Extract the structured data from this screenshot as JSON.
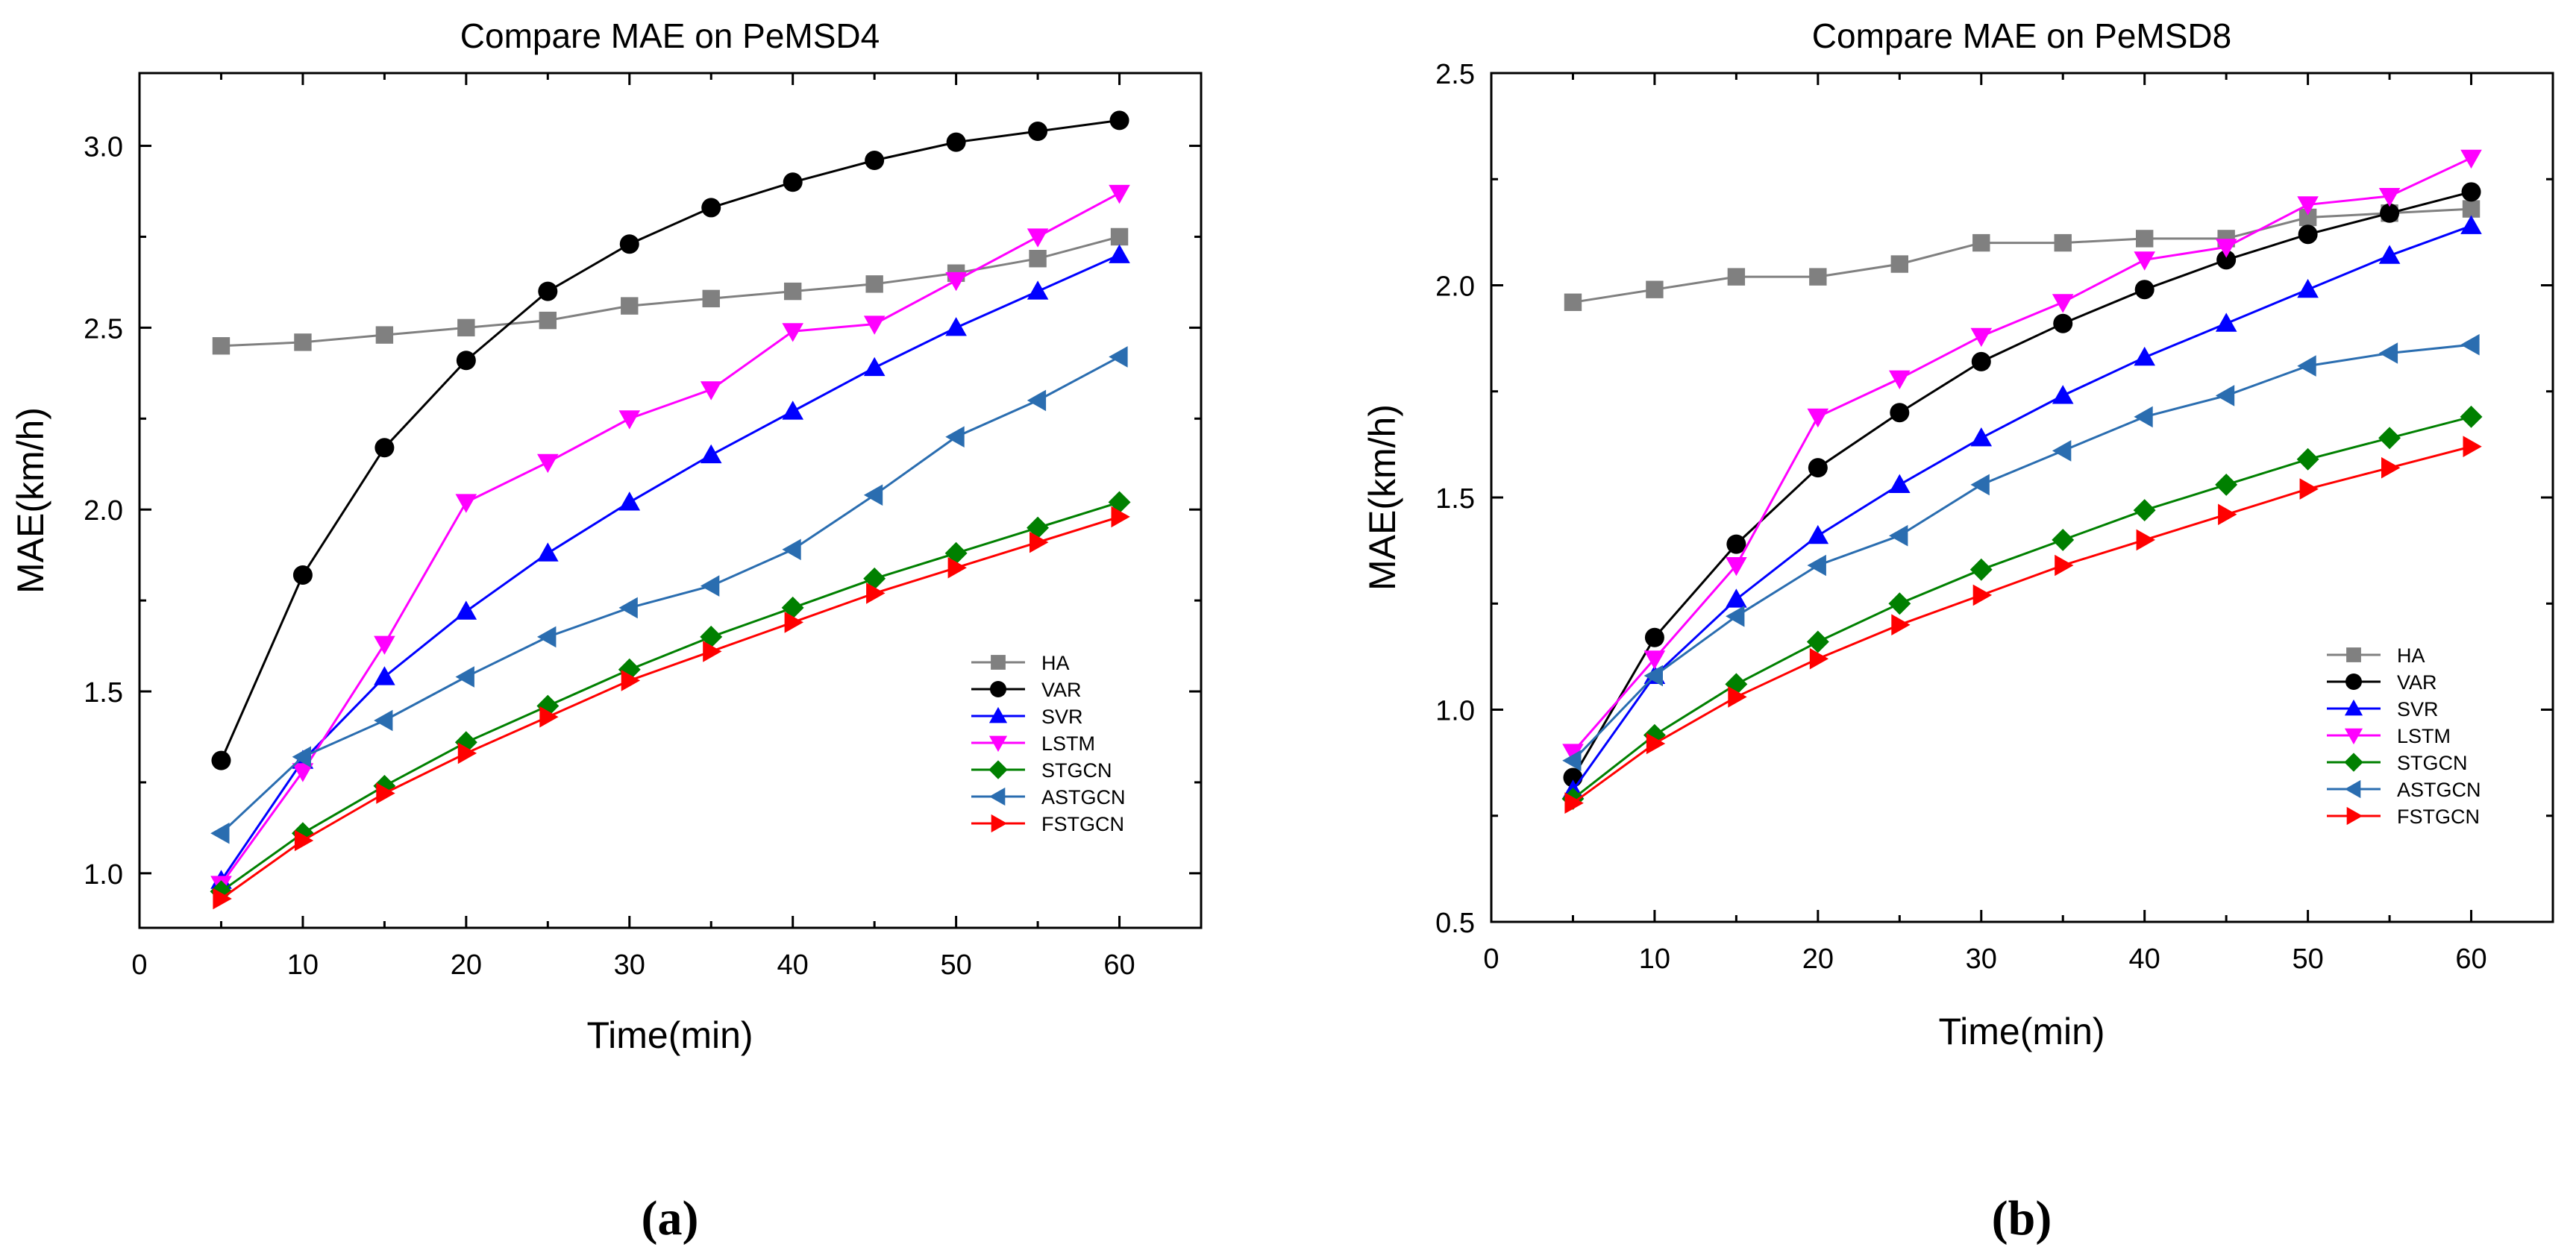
{
  "chart_data": [
    {
      "type": "line",
      "title": "Compare MAE on PeMSD4",
      "xlabel": "Time(min)",
      "ylabel": "MAE(km/h)",
      "xlim": [
        0,
        65
      ],
      "ylim": [
        0.85,
        3.2
      ],
      "xticks": [
        0,
        10,
        20,
        30,
        40,
        50,
        60
      ],
      "yticks": [
        1.0,
        1.5,
        2.0,
        2.5,
        3.0
      ],
      "ytick_labels": [
        "1.0",
        "1.5",
        "2.0",
        "2.5",
        "3.0"
      ],
      "grid": false,
      "legend_position": "bottom-right",
      "caption": "(a)",
      "x": [
        5,
        10,
        15,
        20,
        25,
        30,
        35,
        40,
        45,
        50,
        55,
        60
      ],
      "series": [
        {
          "name": "HA",
          "color": "#808080",
          "marker": "square",
          "values": [
            2.45,
            2.46,
            2.48,
            2.5,
            2.52,
            2.56,
            2.58,
            2.6,
            2.62,
            2.65,
            2.69,
            2.75
          ]
        },
        {
          "name": "VAR",
          "color": "#000000",
          "marker": "circle",
          "values": [
            1.31,
            1.82,
            2.17,
            2.41,
            2.6,
            2.73,
            2.83,
            2.9,
            2.96,
            3.01,
            3.04,
            3.07
          ]
        },
        {
          "name": "SVR",
          "color": "#0000FF",
          "marker": "triangle-up",
          "values": [
            0.98,
            1.31,
            1.54,
            1.72,
            1.88,
            2.02,
            2.15,
            2.27,
            2.39,
            2.5,
            2.6,
            2.7
          ]
        },
        {
          "name": "LSTM",
          "color": "#FF00FF",
          "marker": "triangle-down",
          "values": [
            0.97,
            1.28,
            1.63,
            2.02,
            2.13,
            2.25,
            2.33,
            2.49,
            2.51,
            2.63,
            2.75,
            2.87
          ]
        },
        {
          "name": "STGCN",
          "color": "#008000",
          "marker": "diamond",
          "values": [
            0.95,
            1.11,
            1.24,
            1.36,
            1.46,
            1.56,
            1.65,
            1.73,
            1.81,
            1.88,
            1.95,
            2.02
          ]
        },
        {
          "name": "ASTGCN",
          "color": "#2A6DB0",
          "marker": "triangle-left",
          "values": [
            1.11,
            1.32,
            1.42,
            1.54,
            1.65,
            1.73,
            1.79,
            1.89,
            2.04,
            2.2,
            2.3,
            2.42
          ]
        },
        {
          "name": "FSTGCN",
          "color": "#FF0000",
          "marker": "triangle-right",
          "values": [
            0.93,
            1.09,
            1.22,
            1.33,
            1.43,
            1.53,
            1.61,
            1.69,
            1.77,
            1.84,
            1.91,
            1.98
          ]
        }
      ]
    },
    {
      "type": "line",
      "title": "Compare MAE on PeMSD8",
      "xlabel": "Time(min)",
      "ylabel": "MAE(km/h)",
      "xlim": [
        0,
        65
      ],
      "ylim": [
        0.5,
        2.5
      ],
      "xticks": [
        0,
        10,
        20,
        30,
        40,
        50,
        60
      ],
      "yticks": [
        0.5,
        1.0,
        1.5,
        2.0,
        2.5
      ],
      "ytick_labels": [
        "0.5",
        "1.0",
        "1.5",
        "2.0",
        "2.5"
      ],
      "grid": false,
      "legend_position": "bottom-right",
      "caption": "(b)",
      "x": [
        5,
        10,
        15,
        20,
        25,
        30,
        35,
        40,
        45,
        50,
        55,
        60
      ],
      "series": [
        {
          "name": "HA",
          "color": "#808080",
          "marker": "square",
          "values": [
            1.96,
            1.99,
            2.02,
            2.02,
            2.05,
            2.1,
            2.1,
            2.11,
            2.11,
            2.16,
            2.17,
            2.18
          ]
        },
        {
          "name": "VAR",
          "color": "#000000",
          "marker": "circle",
          "values": [
            0.84,
            1.17,
            1.39,
            1.57,
            1.7,
            1.82,
            1.91,
            1.99,
            2.06,
            2.12,
            2.17,
            2.22
          ]
        },
        {
          "name": "SVR",
          "color": "#0000FF",
          "marker": "triangle-up",
          "values": [
            0.81,
            1.08,
            1.26,
            1.41,
            1.53,
            1.64,
            1.74,
            1.83,
            1.91,
            1.99,
            2.07,
            2.14
          ]
        },
        {
          "name": "LSTM",
          "color": "#FF00FF",
          "marker": "triangle-down",
          "values": [
            0.9,
            1.12,
            1.34,
            1.69,
            1.78,
            1.88,
            1.96,
            2.06,
            2.09,
            2.19,
            2.21,
            2.3
          ]
        },
        {
          "name": "STGCN",
          "color": "#008000",
          "marker": "diamond",
          "values": [
            0.79,
            0.94,
            1.06,
            1.16,
            1.25,
            1.33,
            1.4,
            1.47,
            1.53,
            1.59,
            1.64,
            1.69
          ]
        },
        {
          "name": "ASTGCN",
          "color": "#2A6DB0",
          "marker": "triangle-left",
          "values": [
            0.88,
            1.08,
            1.22,
            1.34,
            1.41,
            1.53,
            1.61,
            1.69,
            1.74,
            1.81,
            1.84,
            1.86
          ]
        },
        {
          "name": "FSTGCN",
          "color": "#FF0000",
          "marker": "triangle-right",
          "values": [
            0.78,
            0.92,
            1.03,
            1.12,
            1.2,
            1.27,
            1.34,
            1.4,
            1.46,
            1.52,
            1.57,
            1.62
          ]
        }
      ]
    }
  ]
}
